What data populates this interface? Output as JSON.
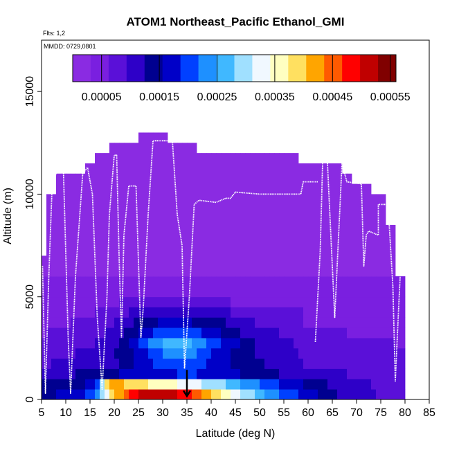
{
  "chart_data": {
    "type": "heatmap",
    "title": "ATOM1 Northeast_Pacific Ethanol_GMI",
    "flights_label": "Flts: 1,2",
    "date_label": "MMDD: 0729,0801",
    "xlabel": "Latitude (deg N)",
    "ylabel": "Altitude (m)",
    "xlim": [
      5,
      85
    ],
    "ylim": [
      0,
      17500
    ],
    "x_ticks": [
      "5",
      "10",
      "15",
      "20",
      "25",
      "30",
      "35",
      "40",
      "45",
      "50",
      "55",
      "60",
      "65",
      "70",
      "75",
      "80",
      "85"
    ],
    "y_ticks": [
      "0",
      "5000",
      "10000",
      "15000"
    ],
    "colorbar": {
      "range": [
        0,
        0.00056
      ],
      "tick_labels": [
        "0.00005",
        "0.00015",
        "0.00025",
        "0.00035",
        "0.00045",
        "0.00055"
      ],
      "tick_values": [
        5e-05,
        0.00015,
        0.00025,
        0.00035,
        0.00045,
        0.00055
      ],
      "colors": [
        "#8a2be2",
        "#7a1fe0",
        "#5a10d8",
        "#2e00c8",
        "#000090",
        "#0000c8",
        "#0040ff",
        "#1e90ff",
        "#40b8ff",
        "#a0e0ff",
        "#f0f8ff",
        "#ffffc0",
        "#ffe060",
        "#ffa500",
        "#ff5a00",
        "#ff0000",
        "#c00000",
        "#800000"
      ]
    },
    "column_tops": [
      {
        "lat": 5,
        "top": 7000
      },
      {
        "lat": 6,
        "top": 10000
      },
      {
        "lat": 7,
        "top": 10000
      },
      {
        "lat": 8,
        "top": 11000
      },
      {
        "lat": 13,
        "top": 11000
      },
      {
        "lat": 14,
        "top": 11500
      },
      {
        "lat": 16,
        "top": 12000
      },
      {
        "lat": 19,
        "top": 12500
      },
      {
        "lat": 25,
        "top": 13000
      },
      {
        "lat": 31,
        "top": 12500
      },
      {
        "lat": 37,
        "top": 12000
      },
      {
        "lat": 58,
        "top": 11500
      },
      {
        "lat": 67,
        "top": 11000
      },
      {
        "lat": 69,
        "top": 10500
      },
      {
        "lat": 73,
        "top": 10000
      },
      {
        "lat": 76,
        "top": 8500
      },
      {
        "lat": 78,
        "top": 6000
      },
      {
        "lat": 79,
        "top": 6000
      },
      {
        "lat": 80,
        "top": 0
      }
    ],
    "layers": [
      {
        "bottom": 0,
        "top": 500,
        "points": [
          [
            5,
            0.00014
          ],
          [
            10,
            0.00017
          ],
          [
            15,
            0.00019
          ],
          [
            17,
            0.00026
          ],
          [
            20,
            0.0004
          ],
          [
            25,
            0.0005
          ],
          [
            30,
            0.00052
          ],
          [
            35,
            0.00048
          ],
          [
            40,
            0.0004
          ],
          [
            45,
            0.00033
          ],
          [
            50,
            0.00026
          ],
          [
            55,
            0.00021
          ],
          [
            60,
            0.00017
          ],
          [
            65,
            0.00013
          ],
          [
            70,
            0.00011
          ],
          [
            75,
            9e-05
          ],
          [
            80,
            8e-05
          ]
        ]
      },
      {
        "bottom": 500,
        "top": 1000,
        "points": [
          [
            5,
            0.00013
          ],
          [
            10,
            0.00014
          ],
          [
            15,
            0.00016
          ],
          [
            17,
            0.0002
          ],
          [
            18,
            0.00036
          ],
          [
            20,
            0.00042
          ],
          [
            25,
            0.00038
          ],
          [
            30,
            0.00036
          ],
          [
            35,
            0.00033
          ],
          [
            40,
            0.0003
          ],
          [
            45,
            0.00026
          ],
          [
            50,
            0.00022
          ],
          [
            55,
            0.00018
          ],
          [
            60,
            0.00015
          ],
          [
            65,
            0.00012
          ],
          [
            70,
            0.0001
          ],
          [
            75,
            9e-05
          ],
          [
            80,
            8e-05
          ]
        ]
      },
      {
        "bottom": 1000,
        "top": 1500,
        "points": [
          [
            5,
            0.00011
          ],
          [
            10,
            0.00012
          ],
          [
            15,
            0.00013
          ],
          [
            20,
            0.00015
          ],
          [
            25,
            0.00017
          ],
          [
            30,
            0.00018
          ],
          [
            35,
            0.00019
          ],
          [
            40,
            0.00018
          ],
          [
            45,
            0.00016
          ],
          [
            50,
            0.00014
          ],
          [
            55,
            0.00012
          ],
          [
            60,
            0.00011
          ],
          [
            70,
            9e-05
          ],
          [
            80,
            8e-05
          ]
        ]
      },
      {
        "bottom": 1500,
        "top": 2000,
        "points": [
          [
            5,
            9e-05
          ],
          [
            10,
            0.0001
          ],
          [
            15,
            0.00011
          ],
          [
            20,
            0.00012
          ],
          [
            25,
            0.00016
          ],
          [
            30,
            0.0002
          ],
          [
            35,
            0.00021
          ],
          [
            40,
            0.00018
          ],
          [
            45,
            0.00015
          ],
          [
            50,
            0.00013
          ],
          [
            55,
            0.00011
          ],
          [
            60,
            9e-05
          ],
          [
            70,
            8e-05
          ],
          [
            80,
            7e-05
          ]
        ]
      },
      {
        "bottom": 2000,
        "top": 2500,
        "points": [
          [
            5,
            8e-05
          ],
          [
            10,
            9e-05
          ],
          [
            15,
            0.0001
          ],
          [
            20,
            0.00012
          ],
          [
            25,
            0.00017
          ],
          [
            30,
            0.00022
          ],
          [
            35,
            0.00023
          ],
          [
            40,
            0.00019
          ],
          [
            45,
            0.00015
          ],
          [
            50,
            0.00012
          ],
          [
            55,
            0.0001
          ],
          [
            60,
            9e-05
          ],
          [
            70,
            8e-05
          ],
          [
            80,
            7e-05
          ]
        ]
      },
      {
        "bottom": 2500,
        "top": 3000,
        "points": [
          [
            5,
            7e-05
          ],
          [
            10,
            8e-05
          ],
          [
            15,
            9e-05
          ],
          [
            20,
            0.00011
          ],
          [
            25,
            0.00019
          ],
          [
            30,
            0.00025
          ],
          [
            35,
            0.00026
          ],
          [
            40,
            0.00021
          ],
          [
            45,
            0.00016
          ],
          [
            50,
            0.00012
          ],
          [
            55,
            0.0001
          ],
          [
            60,
            8e-05
          ],
          [
            70,
            7e-05
          ],
          [
            80,
            6e-05
          ]
        ]
      },
      {
        "bottom": 3000,
        "top": 3500,
        "points": [
          [
            5,
            6e-05
          ],
          [
            10,
            7e-05
          ],
          [
            15,
            8e-05
          ],
          [
            20,
            0.0001
          ],
          [
            25,
            0.00016
          ],
          [
            30,
            0.0002
          ],
          [
            35,
            0.00021
          ],
          [
            40,
            0.00017
          ],
          [
            45,
            0.00013
          ],
          [
            50,
            0.00011
          ],
          [
            55,
            9e-05
          ],
          [
            60,
            7e-05
          ],
          [
            70,
            6e-05
          ],
          [
            80,
            6e-05
          ]
        ]
      },
      {
        "bottom": 3500,
        "top": 4000,
        "points": [
          [
            5,
            5e-05
          ],
          [
            10,
            6e-05
          ],
          [
            15,
            7e-05
          ],
          [
            20,
            9e-05
          ],
          [
            25,
            0.00013
          ],
          [
            30,
            0.00016
          ],
          [
            35,
            0.00016
          ],
          [
            40,
            0.00014
          ],
          [
            45,
            0.00011
          ],
          [
            50,
            9e-05
          ],
          [
            55,
            8e-05
          ],
          [
            60,
            6e-05
          ],
          [
            70,
            5e-05
          ],
          [
            80,
            5e-05
          ]
        ]
      },
      {
        "bottom": 4000,
        "top": 4500,
        "points": [
          [
            5,
            5e-05
          ],
          [
            15,
            6e-05
          ],
          [
            25,
            0.0001
          ],
          [
            30,
            0.00012
          ],
          [
            35,
            0.00012
          ],
          [
            40,
            0.00011
          ],
          [
            45,
            9e-05
          ],
          [
            50,
            8e-05
          ],
          [
            55,
            7e-05
          ],
          [
            60,
            6e-05
          ],
          [
            70,
            5e-05
          ],
          [
            80,
            5e-05
          ]
        ]
      },
      {
        "bottom": 4500,
        "top": 5000,
        "points": [
          [
            5,
            4e-05
          ],
          [
            15,
            5e-05
          ],
          [
            25,
            7e-05
          ],
          [
            35,
            8e-05
          ],
          [
            45,
            6e-05
          ],
          [
            55,
            5e-05
          ],
          [
            80,
            4e-05
          ]
        ]
      },
      {
        "bottom": 5000,
        "top": 6000,
        "points": [
          [
            5,
            3.5e-05
          ],
          [
            30,
            4e-05
          ],
          [
            50,
            3.5e-05
          ],
          [
            80,
            3.5e-05
          ]
        ]
      },
      {
        "bottom": 6000,
        "top": 7000,
        "points": [
          [
            5,
            3e-05
          ],
          [
            80,
            3e-05
          ]
        ]
      },
      {
        "bottom": 7000,
        "top": 8000,
        "points": [
          [
            5,
            2.5e-05
          ],
          [
            80,
            2.5e-05
          ]
        ]
      },
      {
        "bottom": 8000,
        "top": 9000,
        "points": [
          [
            5,
            2e-05
          ],
          [
            80,
            2e-05
          ]
        ]
      },
      {
        "bottom": 9000,
        "top": 13500,
        "points": [
          [
            5,
            1.2e-05
          ],
          [
            80,
            1.2e-05
          ]
        ]
      }
    ],
    "flight_track": [
      [
        5.2,
        6500
      ],
      [
        5.8,
        300
      ],
      [
        6.5,
        6000
      ],
      [
        7.2,
        10500
      ],
      [
        8.5,
        11300
      ],
      [
        9.5,
        11300
      ],
      [
        10.5,
        3000
      ],
      [
        11.0,
        300
      ],
      [
        12.0,
        6000
      ],
      [
        13.5,
        11000
      ],
      [
        14.5,
        11300
      ],
      [
        15.5,
        10000
      ],
      [
        16.5,
        4000
      ],
      [
        17.5,
        500
      ],
      [
        18.5,
        5000
      ],
      [
        19.0,
        9000
      ],
      [
        20.0,
        11900
      ],
      [
        20.5,
        11900
      ],
      [
        21.0,
        7000
      ],
      [
        21.5,
        3000
      ],
      [
        22.0,
        8000
      ],
      [
        23.0,
        10400
      ],
      [
        24.5,
        10400
      ],
      [
        25.5,
        3000
      ],
      [
        26.0,
        4500
      ],
      [
        27.0,
        9000
      ],
      [
        28.0,
        12600
      ],
      [
        32.0,
        12600
      ],
      [
        33.0,
        9000
      ],
      [
        34.0,
        7500
      ],
      [
        34.5,
        1500
      ],
      [
        35.5,
        5000
      ],
      [
        36.5,
        9500
      ],
      [
        37.5,
        9700
      ],
      [
        41.0,
        9600
      ],
      [
        43.0,
        9800
      ],
      [
        44.0,
        9800
      ],
      [
        45.0,
        10100
      ],
      [
        50.0,
        10000
      ],
      [
        55.0,
        10000
      ],
      [
        58.5,
        10000
      ],
      [
        59.0,
        10600
      ],
      [
        62.0,
        10600
      ]
    ],
    "flight_track_2": [
      [
        61.5,
        2800
      ],
      [
        62.5,
        7200
      ],
      [
        63.0,
        11500
      ]
    ],
    "flight_track_3": [
      [
        64.0,
        11500
      ],
      [
        65.5,
        4000
      ],
      [
        67.0,
        11500
      ],
      [
        68.0,
        10600
      ],
      [
        71.0,
        10500
      ],
      [
        71.5,
        6500
      ],
      [
        72.0,
        8000
      ],
      [
        72.5,
        8200
      ],
      [
        74.5,
        8000
      ],
      [
        74.5,
        9500
      ],
      [
        76.5,
        9500
      ],
      [
        77.5,
        5500
      ],
      [
        78.0,
        900
      ],
      [
        78.5,
        3500
      ],
      [
        79.0,
        6000
      ]
    ],
    "marker": {
      "lat": 35,
      "altitude": 700
    }
  }
}
